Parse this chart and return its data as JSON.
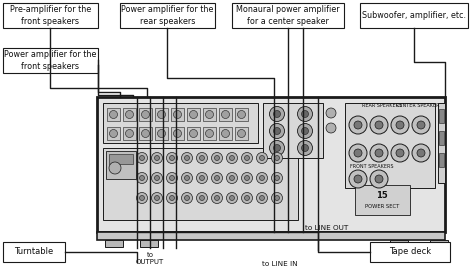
{
  "bg_color": "#ffffff",
  "line_color": "#1a1a1a",
  "box_bg": "#ffffff",
  "box_edge": "#1a1a1a",
  "text_color": "#111111",
  "labels": {
    "pre_amp": "Pre-amplifier for the\nfront speakers",
    "power_rear": "Power amplifier for the\nrear speakers",
    "mono_power": "Monaural power amplifier\nfor a center speaker",
    "subwoofer": "Subwoofer, amplifier, etc.",
    "power_front": "Power amplifier for the\nfront speakers",
    "turntable": "Turntable",
    "tape_deck": "Tape deck",
    "to_output": "to\nOUTPUT",
    "to_line_out": "to LINE OUT",
    "to_line_in": "to LINE IN"
  },
  "figsize": [
    4.74,
    2.71
  ],
  "dpi": 100
}
